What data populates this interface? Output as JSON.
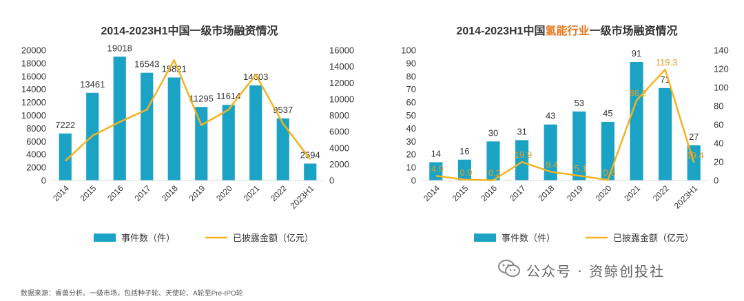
{
  "colors": {
    "bar": "#1ba3c6",
    "line": "#f5b21f",
    "highlight": "#e6761a",
    "amount_label": "#e8a020",
    "axis": "#d9d9d9",
    "text": "#333333"
  },
  "chart_data": [
    {
      "type": "bar",
      "title": "2014-2023H1中国一级市场融资情况",
      "categories": [
        "2014",
        "2015",
        "2016",
        "2017",
        "2018",
        "2019",
        "2020",
        "2021",
        "2022",
        "2023H1"
      ],
      "series": [
        {
          "name": "事件数（件）",
          "type": "bar",
          "axis": "left",
          "values": [
            7222,
            13461,
            19018,
            16543,
            15821,
            11295,
            11614,
            14603,
            9537,
            2594
          ]
        },
        {
          "name": "已披露金额（亿元）",
          "type": "line",
          "axis": "right",
          "values": [
            2400,
            5500,
            7200,
            8700,
            14800,
            6800,
            8700,
            13000,
            7000,
            2600
          ]
        }
      ],
      "bar_labels": [
        "7222",
        "13461",
        "19018",
        "16543",
        "15821",
        "11295",
        "11614",
        "14603",
        "9537",
        "2594"
      ],
      "ylim_left": [
        0,
        20000
      ],
      "yticks_left": [
        "0",
        "2000",
        "4000",
        "6000",
        "8000",
        "10000",
        "12000",
        "14000",
        "16000",
        "18000",
        "20000"
      ],
      "ylim_right": [
        0,
        16000
      ],
      "yticks_right": [
        "0",
        "2000",
        "4000",
        "6000",
        "8000",
        "10000",
        "12000",
        "14000",
        "16000"
      ],
      "legend": [
        "事件数（件）",
        "已披露金额（亿元）"
      ],
      "legend_position": "bottom"
    },
    {
      "type": "bar",
      "title_parts": [
        "2014-2023H1中国",
        "氢能行业",
        "一级市场融资情况"
      ],
      "categories": [
        "2014",
        "2015",
        "2016",
        "2017",
        "2018",
        "2019",
        "2020",
        "2021",
        "2022",
        "2023H1"
      ],
      "series": [
        {
          "name": "事件数（件）",
          "type": "bar",
          "axis": "left",
          "values": [
            14,
            16,
            30,
            31,
            43,
            53,
            45,
            91,
            71,
            27
          ]
        },
        {
          "name": "已披露金额（亿元）",
          "type": "line",
          "axis": "right",
          "values": [
            4.9,
            0.9,
            0.2,
            19.9,
            9.4,
            5.1,
            0.6,
            86.2,
            119.3,
            19.4
          ]
        }
      ],
      "bar_labels": [
        "14",
        "16",
        "30",
        "31",
        "43",
        "53",
        "45",
        "91",
        "71",
        "27"
      ],
      "line_labels": [
        "4.9",
        "0.9",
        "0.2",
        "19.9",
        "9.4",
        "5.1",
        "0.6",
        "86.2",
        "119.3",
        "19.4"
      ],
      "ylim_left": [
        0,
        100
      ],
      "yticks_left": [
        "0",
        "10",
        "20",
        "30",
        "40",
        "50",
        "60",
        "70",
        "80",
        "90",
        "100"
      ],
      "ylim_right": [
        0,
        140
      ],
      "yticks_right": [
        "0",
        "20",
        "40",
        "60",
        "80",
        "100",
        "120",
        "140"
      ],
      "legend": [
        "事件数（件）",
        "已披露金额（亿元）"
      ],
      "legend_position": "bottom"
    }
  ],
  "footer": {
    "source": "数据来源：睿兽分析。一级市场，包括种子轮、天使轮、A轮至Pre-IPO轮",
    "watermark": "公众号 · 资鲸创投社",
    "watermark_icon": "wechat-icon"
  }
}
